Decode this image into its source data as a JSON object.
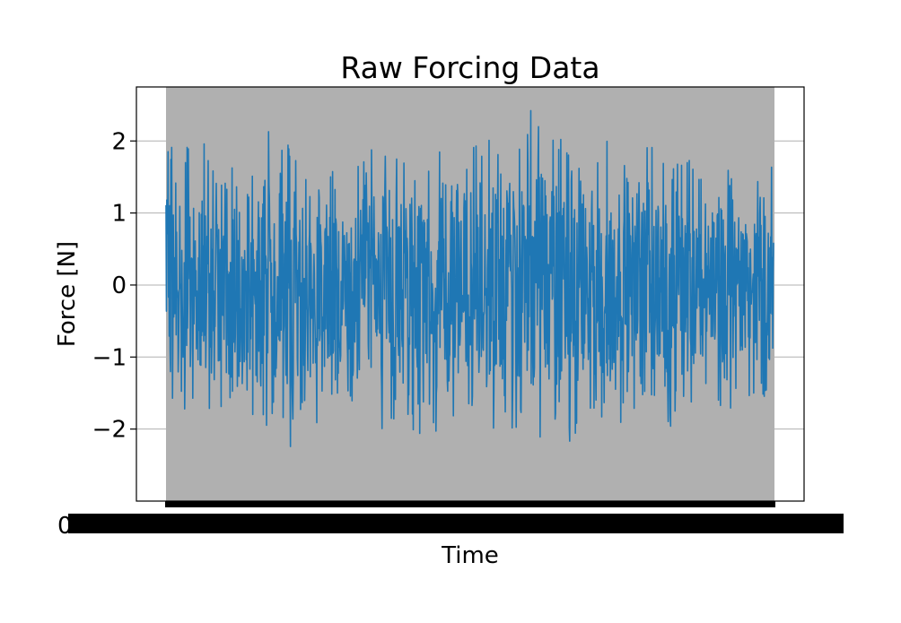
{
  "chart_data": {
    "type": "line",
    "title": "Raw Forcing Data",
    "xlabel": "Time",
    "ylabel": "Force [N]",
    "ylim": [
      -3.0,
      2.75
    ],
    "yticks": [
      {
        "value": 2,
        "label": "2"
      },
      {
        "value": 1,
        "label": "1"
      },
      {
        "value": 0,
        "label": "0"
      },
      {
        "value": -1,
        "label": "−1"
      },
      {
        "value": -2,
        "label": "−2"
      }
    ],
    "xtick_labels_note": "x tick labels are overlapping and unreadable",
    "grid": {
      "y": true,
      "x": false
    },
    "series": [
      {
        "color": "#1f77b4",
        "description": "dense random forcing signal, roughly zero-mean",
        "approx_max": 2.52,
        "approx_min": -2.72,
        "envelope_peaks": [
          1.85,
          2.25,
          2.1,
          2.2,
          1.6,
          1.9,
          1.8,
          1.85,
          2.4,
          1.9,
          2.2,
          1.95,
          2.0,
          1.75,
          2.0,
          2.2,
          1.9,
          1.95,
          2.1,
          1.8,
          2.35,
          1.6,
          2.1,
          2.15,
          2.0,
          1.9,
          2.2,
          1.8,
          2.15,
          2.5,
          1.9,
          2.4,
          1.7,
          1.95,
          1.8,
          2.05,
          1.75,
          1.7,
          2.0,
          1.85,
          1.75,
          1.9,
          1.6,
          1.7,
          1.65,
          1.6,
          1.75,
          1.75,
          1.85
        ],
        "envelope_troughs": [
          -1.45,
          -2.15,
          -1.75,
          -1.6,
          -2.0,
          -1.8,
          -1.55,
          -1.9,
          -2.1,
          -1.7,
          -2.45,
          -1.6,
          -2.25,
          -1.5,
          -1.75,
          -1.85,
          -1.95,
          -2.35,
          -1.9,
          -1.8,
          -2.3,
          -1.85,
          -2.6,
          -1.9,
          -1.75,
          -1.95,
          -2.2,
          -2.25,
          -2.0,
          -1.6,
          -2.7,
          -2.0,
          -2.3,
          -1.75,
          -1.85,
          -1.9,
          -2.0,
          -1.8,
          -1.7,
          -1.75,
          -2.0,
          -1.65,
          -1.8,
          -1.55,
          -1.95,
          -1.65,
          -1.5,
          -1.65,
          -1.45
        ]
      }
    ],
    "background": {
      "axes_span_color": "#b0b0b0",
      "grid_color": "#b0b0b0"
    }
  }
}
